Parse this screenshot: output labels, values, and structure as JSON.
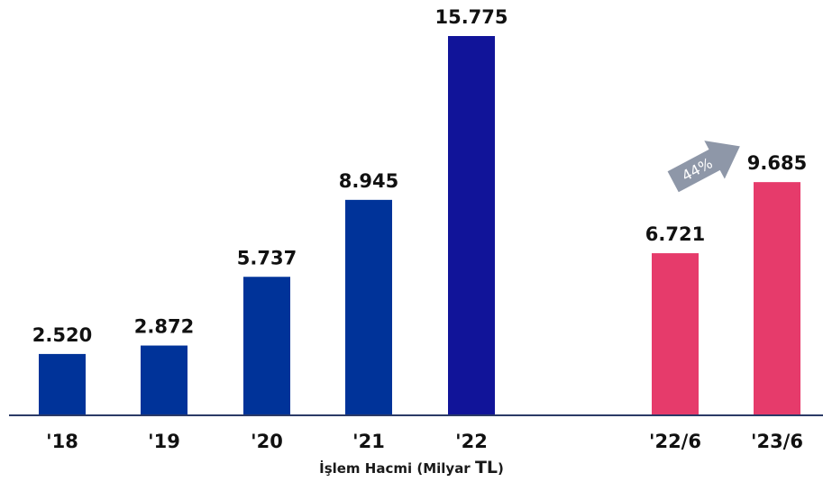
{
  "chart_data": {
    "type": "bar",
    "xlabel": "İşlem Hacmi (Milyar TL)",
    "xlabel_main": "İşlem Hacmi (Milyar ",
    "xlabel_unit": "TL",
    "xlabel_end": ")",
    "ylim": [
      0,
      17000
    ],
    "categories": [
      "'18",
      "'19",
      "'20",
      "'21",
      "'22",
      "'22/6",
      "'23/6"
    ],
    "values": [
      2520,
      2872,
      5737,
      8945,
      15775,
      6721,
      9685
    ],
    "value_labels": [
      "2.520",
      "2.872",
      "5.737",
      "8.945",
      "15.775",
      "6.721",
      "9.685"
    ],
    "colors": [
      "#003399",
      "#003399",
      "#003399",
      "#003399",
      "#111499",
      "#e63b6b",
      "#e63b6b"
    ],
    "axis_color": "#2b3a67",
    "annotation": {
      "text": "44%",
      "from": "'22/6",
      "to": "'23/6",
      "color": "#8e97a8"
    },
    "grid": false,
    "legend": "none"
  }
}
